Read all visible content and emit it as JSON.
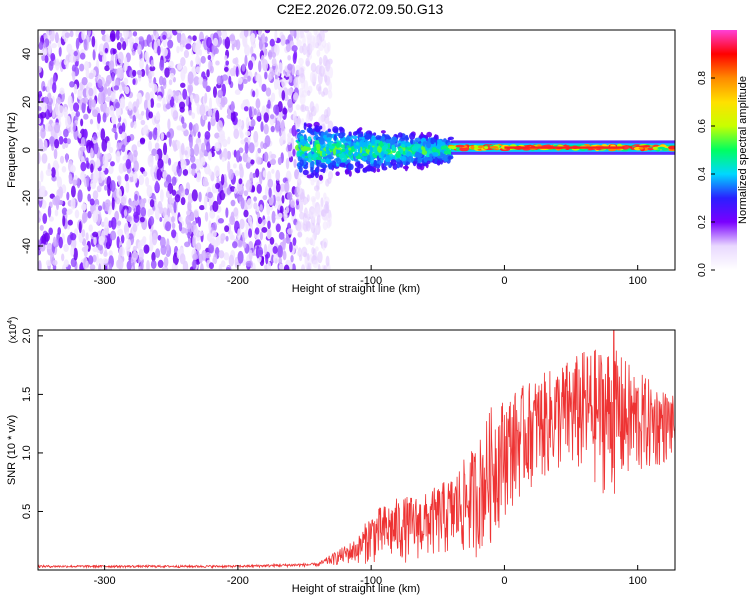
{
  "title": "C2E2.2026.072.09.50.G13",
  "chart_data": [
    {
      "type": "heatmap",
      "xlabel": "Height of straight line (km)",
      "ylabel": "Frequency (Hz)",
      "xlim": [
        -350,
        128
      ],
      "ylim": [
        -50,
        50
      ],
      "xticks": [
        -300,
        -200,
        -100,
        0,
        100
      ],
      "yticks": [
        -40,
        -20,
        0,
        20,
        40
      ],
      "colorbar": {
        "label": "Normalized spectral amplitude",
        "range": [
          0,
          1
        ],
        "ticks": [
          0.0,
          0.2,
          0.4,
          0.6,
          0.8
        ],
        "tick_labels": [
          "0.0",
          "0.2",
          "0.4",
          "0.6",
          "0.8"
        ],
        "colors": [
          "#ffffff",
          "#e9d8ff",
          "#7a00ff",
          "#2a20ff",
          "#00d8ff",
          "#00ff60",
          "#c8ff00",
          "#ffe000",
          "#ff8a00",
          "#ff0000",
          "#ff40d8"
        ]
      },
      "regions": [
        {
          "x_range": [
            -350,
            -155
          ],
          "freq_range": [
            -50,
            50
          ],
          "amplitude": "low",
          "pattern": "broadband speckle"
        },
        {
          "x_range": [
            -155,
            -130
          ],
          "freq_range": [
            -50,
            50
          ],
          "amplitude": "very low",
          "pattern": "faint speckle"
        },
        {
          "x_range": [
            -155,
            -40
          ],
          "freq_center": 0,
          "freq_half_width": 12,
          "amplitude": "medium"
        },
        {
          "x_range": [
            -40,
            128
          ],
          "freq_center": 1,
          "freq_half_width": 3,
          "amplitude": "high"
        }
      ]
    },
    {
      "type": "line",
      "xlabel": "Height of straight line (km)",
      "ylabel": "SNR (10 * v/v)",
      "y_multiplier": "(x10^4)",
      "y_multiplier_base": "(x10",
      "y_multiplier_exp": "4",
      "y_multiplier_close": ")",
      "xlim": [
        -350,
        128
      ],
      "ylim": [
        0,
        2.05
      ],
      "xticks": [
        -300,
        -200,
        -100,
        0,
        100
      ],
      "yticks": [
        0.5,
        1.0,
        1.5,
        2.0
      ],
      "ytick_labels": [
        "0.5",
        "1.0",
        "1.5",
        "2.0"
      ],
      "series": [
        {
          "name": "SNR",
          "color": "#ee3333",
          "envelope_x": [
            -350,
            -200,
            -140,
            -110,
            -100,
            -80,
            -60,
            -40,
            -20,
            -10,
            0,
            20,
            40,
            60,
            80,
            100,
            128
          ],
          "envelope_min": [
            0.02,
            0.02,
            0.03,
            0.05,
            0.05,
            0.05,
            0.08,
            0.1,
            0.1,
            0.2,
            0.45,
            0.7,
            0.8,
            0.75,
            0.6,
            0.75,
            0.95
          ],
          "envelope_max": [
            0.04,
            0.04,
            0.06,
            0.28,
            0.5,
            0.62,
            0.65,
            0.8,
            1.1,
            1.4,
            1.48,
            1.62,
            1.75,
            1.88,
            1.92,
            1.7,
            1.48
          ],
          "peak": {
            "x": 82,
            "y": 2.05
          }
        }
      ]
    }
  ]
}
